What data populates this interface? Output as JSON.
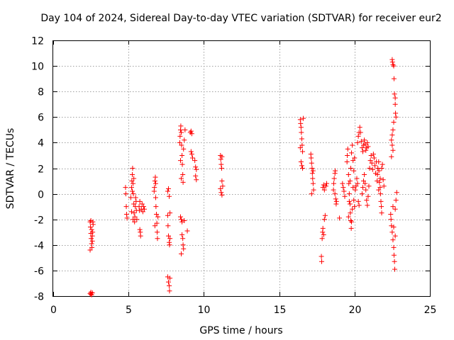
{
  "chart_data": {
    "type": "scatter",
    "title": "Day 104 of 2024, Sidereal Day-to-day VTEC variation (SDTVAR) for receiver eur2",
    "xlabel": "GPS time / hours",
    "ylabel": "SDTVAR / TECUs",
    "xlim": [
      0,
      25
    ],
    "ylim": [
      -8,
      12
    ],
    "x_ticks": [
      0,
      5,
      10,
      15,
      20,
      25
    ],
    "y_ticks": [
      -8,
      -6,
      -4,
      -2,
      0,
      2,
      4,
      6,
      8,
      10,
      12
    ],
    "x_tick_labels": [
      "0",
      "5",
      "10",
      "15",
      "20",
      "25"
    ],
    "y_tick_labels": [
      "-8",
      "-6",
      "-4",
      "-2",
      "0",
      "2",
      "4",
      "6",
      "8",
      "10",
      "12"
    ],
    "grid": true,
    "marker": "+",
    "series": [
      {
        "name": "SDTVAR",
        "color": "#ff0000",
        "points": [
          [
            2.45,
            -2.2
          ],
          [
            2.47,
            -2.6
          ],
          [
            2.5,
            -3.1
          ],
          [
            2.52,
            -3.5
          ],
          [
            2.55,
            -3.9
          ],
          [
            2.57,
            -4.2
          ],
          [
            2.6,
            -3.7
          ],
          [
            2.62,
            -3.0
          ],
          [
            2.65,
            -2.4
          ],
          [
            2.45,
            -4.4
          ],
          [
            2.5,
            -2.1
          ],
          [
            2.55,
            -2.8
          ],
          [
            2.6,
            -3.3
          ],
          [
            2.63,
            -2.2
          ],
          [
            2.45,
            -7.8
          ],
          [
            2.5,
            -7.85
          ],
          [
            2.55,
            -7.9
          ],
          [
            2.6,
            -7.75
          ],
          [
            2.5,
            -7.7
          ],
          [
            4.8,
            0.5
          ],
          [
            4.82,
            0.0
          ],
          [
            4.85,
            -1.0
          ],
          [
            4.87,
            -1.6
          ],
          [
            4.9,
            -1.9
          ],
          [
            5.15,
            -0.3
          ],
          [
            5.2,
            0.5
          ],
          [
            5.22,
            1.0
          ],
          [
            5.25,
            1.5
          ],
          [
            5.27,
            2.0
          ],
          [
            5.3,
            0.8
          ],
          [
            5.32,
            0.0
          ],
          [
            5.35,
            -0.8
          ],
          [
            5.37,
            -1.5
          ],
          [
            5.4,
            -2.2
          ],
          [
            5.42,
            -1.8
          ],
          [
            5.45,
            -1.0
          ],
          [
            5.47,
            -0.3
          ],
          [
            5.5,
            -0.6
          ],
          [
            5.52,
            -1.3
          ],
          [
            5.55,
            -2.0
          ],
          [
            5.2,
            -1.4
          ],
          [
            5.3,
            -2.0
          ],
          [
            5.25,
            0.2
          ],
          [
            5.35,
            1.2
          ],
          [
            5.7,
            -1.0
          ],
          [
            5.72,
            -1.3
          ],
          [
            5.75,
            -2.8
          ],
          [
            5.78,
            -3.0
          ],
          [
            5.8,
            -3.3
          ],
          [
            5.85,
            -1.2
          ],
          [
            5.9,
            -0.8
          ],
          [
            5.95,
            -1.4
          ],
          [
            6.0,
            -1.0
          ],
          [
            6.05,
            -1.2
          ],
          [
            5.75,
            -0.6
          ],
          [
            6.7,
            0.2
          ],
          [
            6.72,
            0.5
          ],
          [
            6.75,
            1.0
          ],
          [
            6.78,
            1.3
          ],
          [
            6.8,
            -0.3
          ],
          [
            6.82,
            -1.0
          ],
          [
            6.85,
            -1.6
          ],
          [
            6.88,
            -2.3
          ],
          [
            6.9,
            -3.0
          ],
          [
            6.92,
            -3.5
          ],
          [
            6.95,
            -1.8
          ],
          [
            6.75,
            -2.5
          ],
          [
            6.8,
            0.8
          ],
          [
            7.6,
            -1.7
          ],
          [
            7.62,
            -2.5
          ],
          [
            7.65,
            -3.3
          ],
          [
            7.7,
            -3.8
          ],
          [
            7.72,
            -4.0
          ],
          [
            7.75,
            -3.5
          ],
          [
            7.6,
            0.2
          ],
          [
            7.65,
            0.4
          ],
          [
            7.7,
            -0.2
          ],
          [
            7.75,
            -1.5
          ],
          [
            7.6,
            -6.5
          ],
          [
            7.65,
            -6.9
          ],
          [
            7.7,
            -7.2
          ],
          [
            7.72,
            -7.6
          ],
          [
            7.75,
            -6.6
          ],
          [
            8.4,
            4.0
          ],
          [
            8.42,
            4.5
          ],
          [
            8.45,
            5.0
          ],
          [
            8.47,
            5.3
          ],
          [
            8.5,
            4.8
          ],
          [
            8.52,
            3.8
          ],
          [
            8.55,
            3.0
          ],
          [
            8.57,
            2.3
          ],
          [
            8.6,
            1.5
          ],
          [
            8.62,
            0.9
          ],
          [
            8.45,
            2.6
          ],
          [
            8.5,
            1.2
          ],
          [
            8.65,
            3.5
          ],
          [
            8.7,
            4.2
          ],
          [
            8.75,
            5.0
          ],
          [
            8.45,
            -1.8
          ],
          [
            8.5,
            -2.0
          ],
          [
            8.55,
            -2.2
          ],
          [
            8.6,
            -3.5
          ],
          [
            8.62,
            -4.0
          ],
          [
            8.65,
            -4.3
          ],
          [
            8.5,
            -4.7
          ],
          [
            8.55,
            -3.2
          ],
          [
            8.7,
            -2.1
          ],
          [
            8.9,
            -2.9
          ],
          [
            9.1,
            4.8
          ],
          [
            9.15,
            4.9
          ],
          [
            9.2,
            4.7
          ],
          [
            9.15,
            3.3
          ],
          [
            9.2,
            3.1
          ],
          [
            9.25,
            2.8
          ],
          [
            9.4,
            2.6
          ],
          [
            9.45,
            2.1
          ],
          [
            9.5,
            1.9
          ],
          [
            9.45,
            1.4
          ],
          [
            9.5,
            1.1
          ],
          [
            11.1,
            3.0
          ],
          [
            11.12,
            2.7
          ],
          [
            11.15,
            2.3
          ],
          [
            11.18,
            2.0
          ],
          [
            11.2,
            2.9
          ],
          [
            11.1,
            0.4
          ],
          [
            11.15,
            0.1
          ],
          [
            11.2,
            -0.1
          ],
          [
            11.25,
            0.6
          ],
          [
            11.2,
            1.0
          ],
          [
            16.4,
            5.8
          ],
          [
            16.42,
            5.5
          ],
          [
            16.45,
            5.2
          ],
          [
            16.47,
            4.8
          ],
          [
            16.5,
            4.3
          ],
          [
            16.52,
            3.8
          ],
          [
            16.55,
            3.3
          ],
          [
            16.45,
            2.5
          ],
          [
            16.5,
            2.2
          ],
          [
            16.55,
            2.0
          ],
          [
            16.4,
            3.6
          ],
          [
            16.6,
            5.9
          ],
          [
            17.1,
            3.1
          ],
          [
            17.12,
            2.8
          ],
          [
            17.15,
            2.4
          ],
          [
            17.18,
            2.0
          ],
          [
            17.2,
            1.6
          ],
          [
            17.22,
            1.2
          ],
          [
            17.25,
            0.8
          ],
          [
            17.28,
            0.3
          ],
          [
            17.15,
            0.0
          ],
          [
            17.25,
            1.8
          ],
          [
            17.8,
            -4.9
          ],
          [
            17.82,
            -5.3
          ],
          [
            17.85,
            -3.5
          ],
          [
            17.88,
            -3.0
          ],
          [
            17.9,
            -2.7
          ],
          [
            17.95,
            -3.2
          ],
          [
            18.0,
            -2.0
          ],
          [
            18.05,
            -1.7
          ],
          [
            17.9,
            0.5
          ],
          [
            17.95,
            0.7
          ],
          [
            18.0,
            0.3
          ],
          [
            18.1,
            0.6
          ],
          [
            18.15,
            0.8
          ],
          [
            18.6,
            0.3
          ],
          [
            18.62,
            0.8
          ],
          [
            18.65,
            1.2
          ],
          [
            18.7,
            1.6
          ],
          [
            18.72,
            1.8
          ],
          [
            18.75,
            -0.4
          ],
          [
            18.78,
            -0.8
          ],
          [
            18.8,
            -0.6
          ],
          [
            18.7,
            0.0
          ],
          [
            19.0,
            -1.9
          ],
          [
            19.2,
            0.8
          ],
          [
            19.25,
            0.5
          ],
          [
            19.3,
            0.2
          ],
          [
            19.35,
            -0.2
          ],
          [
            19.5,
            2.5
          ],
          [
            19.52,
            3.0
          ],
          [
            19.55,
            3.5
          ],
          [
            19.6,
            1.5
          ],
          [
            19.62,
            0.8
          ],
          [
            19.65,
            0.0
          ],
          [
            19.7,
            -0.8
          ],
          [
            19.72,
            -1.5
          ],
          [
            19.75,
            -2.1
          ],
          [
            19.78,
            -2.7
          ],
          [
            19.8,
            -2.2
          ],
          [
            19.85,
            -1.2
          ],
          [
            19.9,
            0.5
          ],
          [
            19.95,
            1.8
          ],
          [
            20.0,
            2.8
          ],
          [
            19.7,
            1.0
          ],
          [
            19.75,
            2.0
          ],
          [
            19.8,
            3.2
          ],
          [
            19.85,
            3.8
          ],
          [
            19.9,
            2.6
          ],
          [
            19.95,
            -0.5
          ],
          [
            20.0,
            -1.0
          ],
          [
            19.6,
            -1.8
          ],
          [
            19.65,
            -0.6
          ],
          [
            20.05,
            0.3
          ],
          [
            20.1,
            0.6
          ],
          [
            20.15,
            1.2
          ],
          [
            20.2,
            0.8
          ],
          [
            20.25,
            -0.6
          ],
          [
            20.3,
            -0.9
          ],
          [
            20.2,
            4.0
          ],
          [
            20.25,
            4.5
          ],
          [
            20.3,
            4.8
          ],
          [
            20.35,
            5.2
          ],
          [
            20.4,
            4.8
          ],
          [
            20.45,
            4.1
          ],
          [
            20.5,
            3.6
          ],
          [
            20.55,
            3.3
          ],
          [
            20.6,
            3.8
          ],
          [
            20.65,
            4.2
          ],
          [
            20.7,
            3.9
          ],
          [
            20.75,
            3.4
          ],
          [
            20.8,
            3.6
          ],
          [
            20.85,
            4.0
          ],
          [
            20.9,
            3.7
          ],
          [
            20.5,
            0.0
          ],
          [
            20.55,
            0.5
          ],
          [
            20.6,
            1.0
          ],
          [
            20.65,
            1.5
          ],
          [
            20.7,
            0.8
          ],
          [
            20.75,
            0.3
          ],
          [
            20.8,
            -0.5
          ],
          [
            20.85,
            -0.9
          ],
          [
            20.9,
            -0.2
          ],
          [
            20.95,
            0.6
          ],
          [
            21.0,
            2.0
          ],
          [
            21.05,
            2.6
          ],
          [
            21.1,
            3.0
          ],
          [
            21.15,
            2.4
          ],
          [
            21.2,
            1.9
          ],
          [
            21.25,
            3.1
          ],
          [
            21.3,
            2.8
          ],
          [
            21.35,
            2.2
          ],
          [
            21.4,
            1.6
          ],
          [
            21.45,
            2.5
          ],
          [
            21.5,
            1.0
          ],
          [
            21.52,
            1.5
          ],
          [
            21.55,
            2.0
          ],
          [
            21.6,
            2.5
          ],
          [
            21.62,
            1.8
          ],
          [
            21.65,
            0.9
          ],
          [
            21.7,
            0.5
          ],
          [
            21.72,
            0.0
          ],
          [
            21.75,
            -0.6
          ],
          [
            21.78,
            -1.0
          ],
          [
            21.8,
            -1.5
          ],
          [
            21.6,
            0.3
          ],
          [
            21.7,
            1.2
          ],
          [
            21.8,
            2.0
          ],
          [
            21.85,
            2.3
          ],
          [
            21.9,
            1.1
          ],
          [
            21.95,
            0.6
          ],
          [
            22.5,
            10.5
          ],
          [
            22.52,
            10.3
          ],
          [
            22.55,
            10.1
          ],
          [
            22.6,
            10.0
          ],
          [
            22.62,
            9.0
          ],
          [
            22.65,
            7.8
          ],
          [
            22.7,
            7.0
          ],
          [
            22.72,
            6.3
          ],
          [
            22.75,
            6.0
          ],
          [
            22.55,
            5.0
          ],
          [
            22.5,
            4.6
          ],
          [
            22.45,
            4.2
          ],
          [
            22.5,
            3.8
          ],
          [
            22.55,
            3.4
          ],
          [
            22.45,
            2.9
          ],
          [
            22.6,
            5.6
          ],
          [
            22.7,
            7.5
          ],
          [
            22.4,
            -1.6
          ],
          [
            22.42,
            -2.0
          ],
          [
            22.45,
            -2.5
          ],
          [
            22.5,
            -3.0
          ],
          [
            22.55,
            -3.6
          ],
          [
            22.6,
            -4.2
          ],
          [
            22.62,
            -4.8
          ],
          [
            22.65,
            -5.3
          ],
          [
            22.67,
            -5.9
          ],
          [
            22.7,
            -1.2
          ],
          [
            22.75,
            -0.5
          ],
          [
            22.8,
            0.1
          ],
          [
            22.55,
            -1.0
          ],
          [
            22.6,
            -2.6
          ],
          [
            22.7,
            -3.3
          ]
        ]
      }
    ]
  }
}
